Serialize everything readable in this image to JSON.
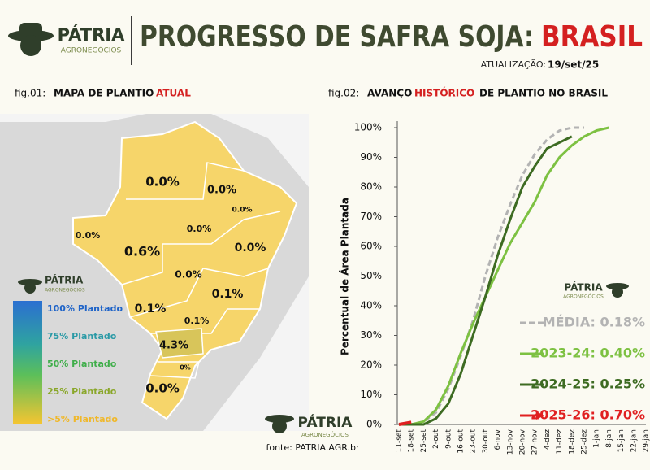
{
  "header": {
    "brand": "PÁTRIA",
    "brand_sub": "AGRONEGÓCIOS",
    "title": "PROGRESSO DE SAFRA SOJA:",
    "title_highlight": "BRASIL",
    "update_label": "ATUALIZAÇÃO:",
    "update_value": "19/set/25"
  },
  "map": {
    "fig": "fig.01:",
    "caption": "MAPA DE PLANTIO",
    "caption_highlight": "ATUAL",
    "regions": [
      "0.0%",
      "0.0%",
      "0.0%",
      "0.0%",
      "0.6%",
      "0.0%",
      "0.0%",
      "0.0%",
      "0.1%",
      "0.1%",
      "0.1%",
      "4.3%",
      "0%",
      "0.0%"
    ],
    "legend": [
      "100% Plantado",
      "75% Plantado",
      "50% Plantado",
      "25% Plantado",
      ">5% Plantado"
    ]
  },
  "footer": {
    "source": "fonte: PATRIA.AGR.br"
  },
  "chart_data": {
    "type": "line",
    "fig": "fig.02:",
    "title_before": "AVANÇO",
    "title_highlight": "HISTÓRICO",
    "title_after": "DE PLANTIO NO BRASIL",
    "y_label": "Percentual de Área Plantada",
    "categories": [
      "11-set",
      "18-set",
      "25-set",
      "2-out",
      "9-out",
      "16-out",
      "23-out",
      "30-out",
      "6-nov",
      "13-nov",
      "20-nov",
      "27-nov",
      "4-dez",
      "11-dez",
      "18-dez",
      "25-dez",
      "1-jan",
      "8-jan",
      "15-jan",
      "22-jan",
      "29-jan"
    ],
    "ylim": [
      0,
      100
    ],
    "yticks": [
      {
        "value": 0,
        "label": "0%"
      },
      {
        "value": 10,
        "label": "10%"
      },
      {
        "value": 20,
        "label": "20%"
      },
      {
        "value": 30,
        "label": "30%"
      },
      {
        "value": 40,
        "label": "40%"
      },
      {
        "value": 50,
        "label": "50%"
      },
      {
        "value": 60,
        "label": "60%"
      },
      {
        "value": 70,
        "label": "70%"
      },
      {
        "value": 80,
        "label": "80%"
      },
      {
        "value": 90,
        "label": "90%"
      },
      {
        "value": 100,
        "label": "100%"
      }
    ],
    "series": [
      {
        "name": "MÉDIA:  0.18%",
        "color": "#b3b3b3",
        "dashed": true,
        "values": [
          0,
          0,
          1,
          4,
          12,
          23,
          35,
          50,
          63,
          74,
          84,
          91,
          96,
          99,
          100,
          100,
          null,
          null,
          null,
          null,
          null
        ]
      },
      {
        "name": "2023-24: 0.40%",
        "color": "#7dc142",
        "values": [
          0,
          0,
          1,
          5,
          13,
          24,
          34,
          43,
          52,
          61,
          68,
          75,
          84,
          90,
          94,
          97,
          99,
          100,
          null,
          null,
          null
        ]
      },
      {
        "name": "2024-25: 0.25%",
        "color": "#3d6b22",
        "values": [
          0,
          0,
          0,
          2,
          7,
          17,
          30,
          43,
          57,
          69,
          80,
          87,
          93,
          95,
          97,
          null,
          null,
          null,
          null,
          null,
          null
        ]
      },
      {
        "name": "2025-26: 0.70%",
        "color": "#e02020",
        "arrow": true,
        "values": [
          0,
          0.7,
          null,
          null,
          null,
          null,
          null,
          null,
          null,
          null,
          null,
          null,
          null,
          null,
          null,
          null,
          null,
          null,
          null,
          null,
          null
        ]
      }
    ]
  }
}
